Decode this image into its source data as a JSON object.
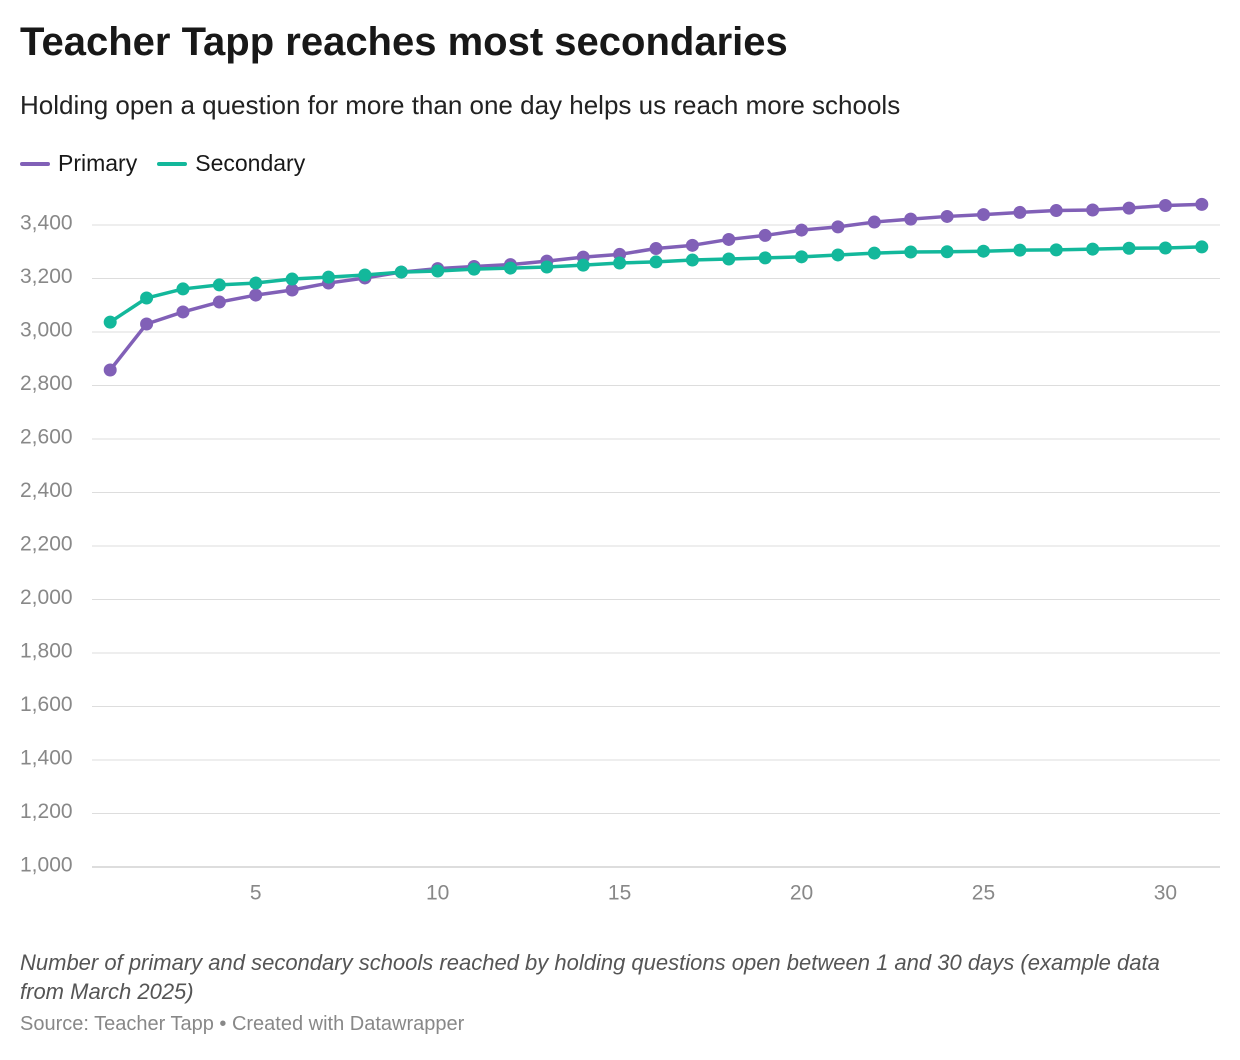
{
  "chart_data": {
    "type": "line",
    "title": "Teacher Tapp reaches most secondaries",
    "subtitle": "Holding open a question for more than one day helps us reach more schools",
    "caption": "Number of primary and secondary schools reached by holding questions open between 1 and 30 days (example data from March 2025)",
    "source": "Source: Teacher Tapp • Created with Datawrapper",
    "x": [
      1,
      2,
      3,
      4,
      5,
      6,
      7,
      8,
      9,
      10,
      11,
      12,
      13,
      14,
      15,
      16,
      17,
      18,
      19,
      20,
      21,
      22,
      23,
      24,
      25,
      26,
      27,
      28,
      29,
      30,
      31
    ],
    "series": [
      {
        "name": "Primary",
        "color": "#8160b7",
        "values": [
          2858,
          3030,
          3075,
          3112,
          3138,
          3157,
          3183,
          3202,
          3224,
          3237,
          3245,
          3252,
          3265,
          3280,
          3290,
          3312,
          3324,
          3346,
          3361,
          3381,
          3393,
          3411,
          3422,
          3432,
          3439,
          3447,
          3454,
          3456,
          3463,
          3473,
          3477
        ]
      },
      {
        "name": "Secondary",
        "color": "#13b89b",
        "values": [
          3037,
          3127,
          3161,
          3176,
          3183,
          3198,
          3205,
          3213,
          3224,
          3228,
          3235,
          3239,
          3243,
          3250,
          3258,
          3262,
          3269,
          3273,
          3277,
          3281,
          3288,
          3295,
          3299,
          3300,
          3302,
          3306,
          3307,
          3310,
          3313,
          3314,
          3318
        ]
      }
    ],
    "xlim": [
      0.5,
      31.5
    ],
    "xticks": [
      5,
      10,
      15,
      20,
      25,
      30
    ],
    "ylim": [
      1000,
      3500
    ],
    "yticks": [
      {
        "value": 1000,
        "label": "1,000"
      },
      {
        "value": 1200,
        "label": "1,200"
      },
      {
        "value": 1400,
        "label": "1,400"
      },
      {
        "value": 1600,
        "label": "1,600"
      },
      {
        "value": 1800,
        "label": "1,800"
      },
      {
        "value": 2000,
        "label": "2,000"
      },
      {
        "value": 2200,
        "label": "2,200"
      },
      {
        "value": 2400,
        "label": "2,400"
      },
      {
        "value": 2600,
        "label": "2,600"
      },
      {
        "value": 2800,
        "label": "2,800"
      },
      {
        "value": 3000,
        "label": "3,000"
      },
      {
        "value": 3200,
        "label": "3,200"
      },
      {
        "value": 3400,
        "label": "3,400"
      }
    ],
    "grid": true
  }
}
